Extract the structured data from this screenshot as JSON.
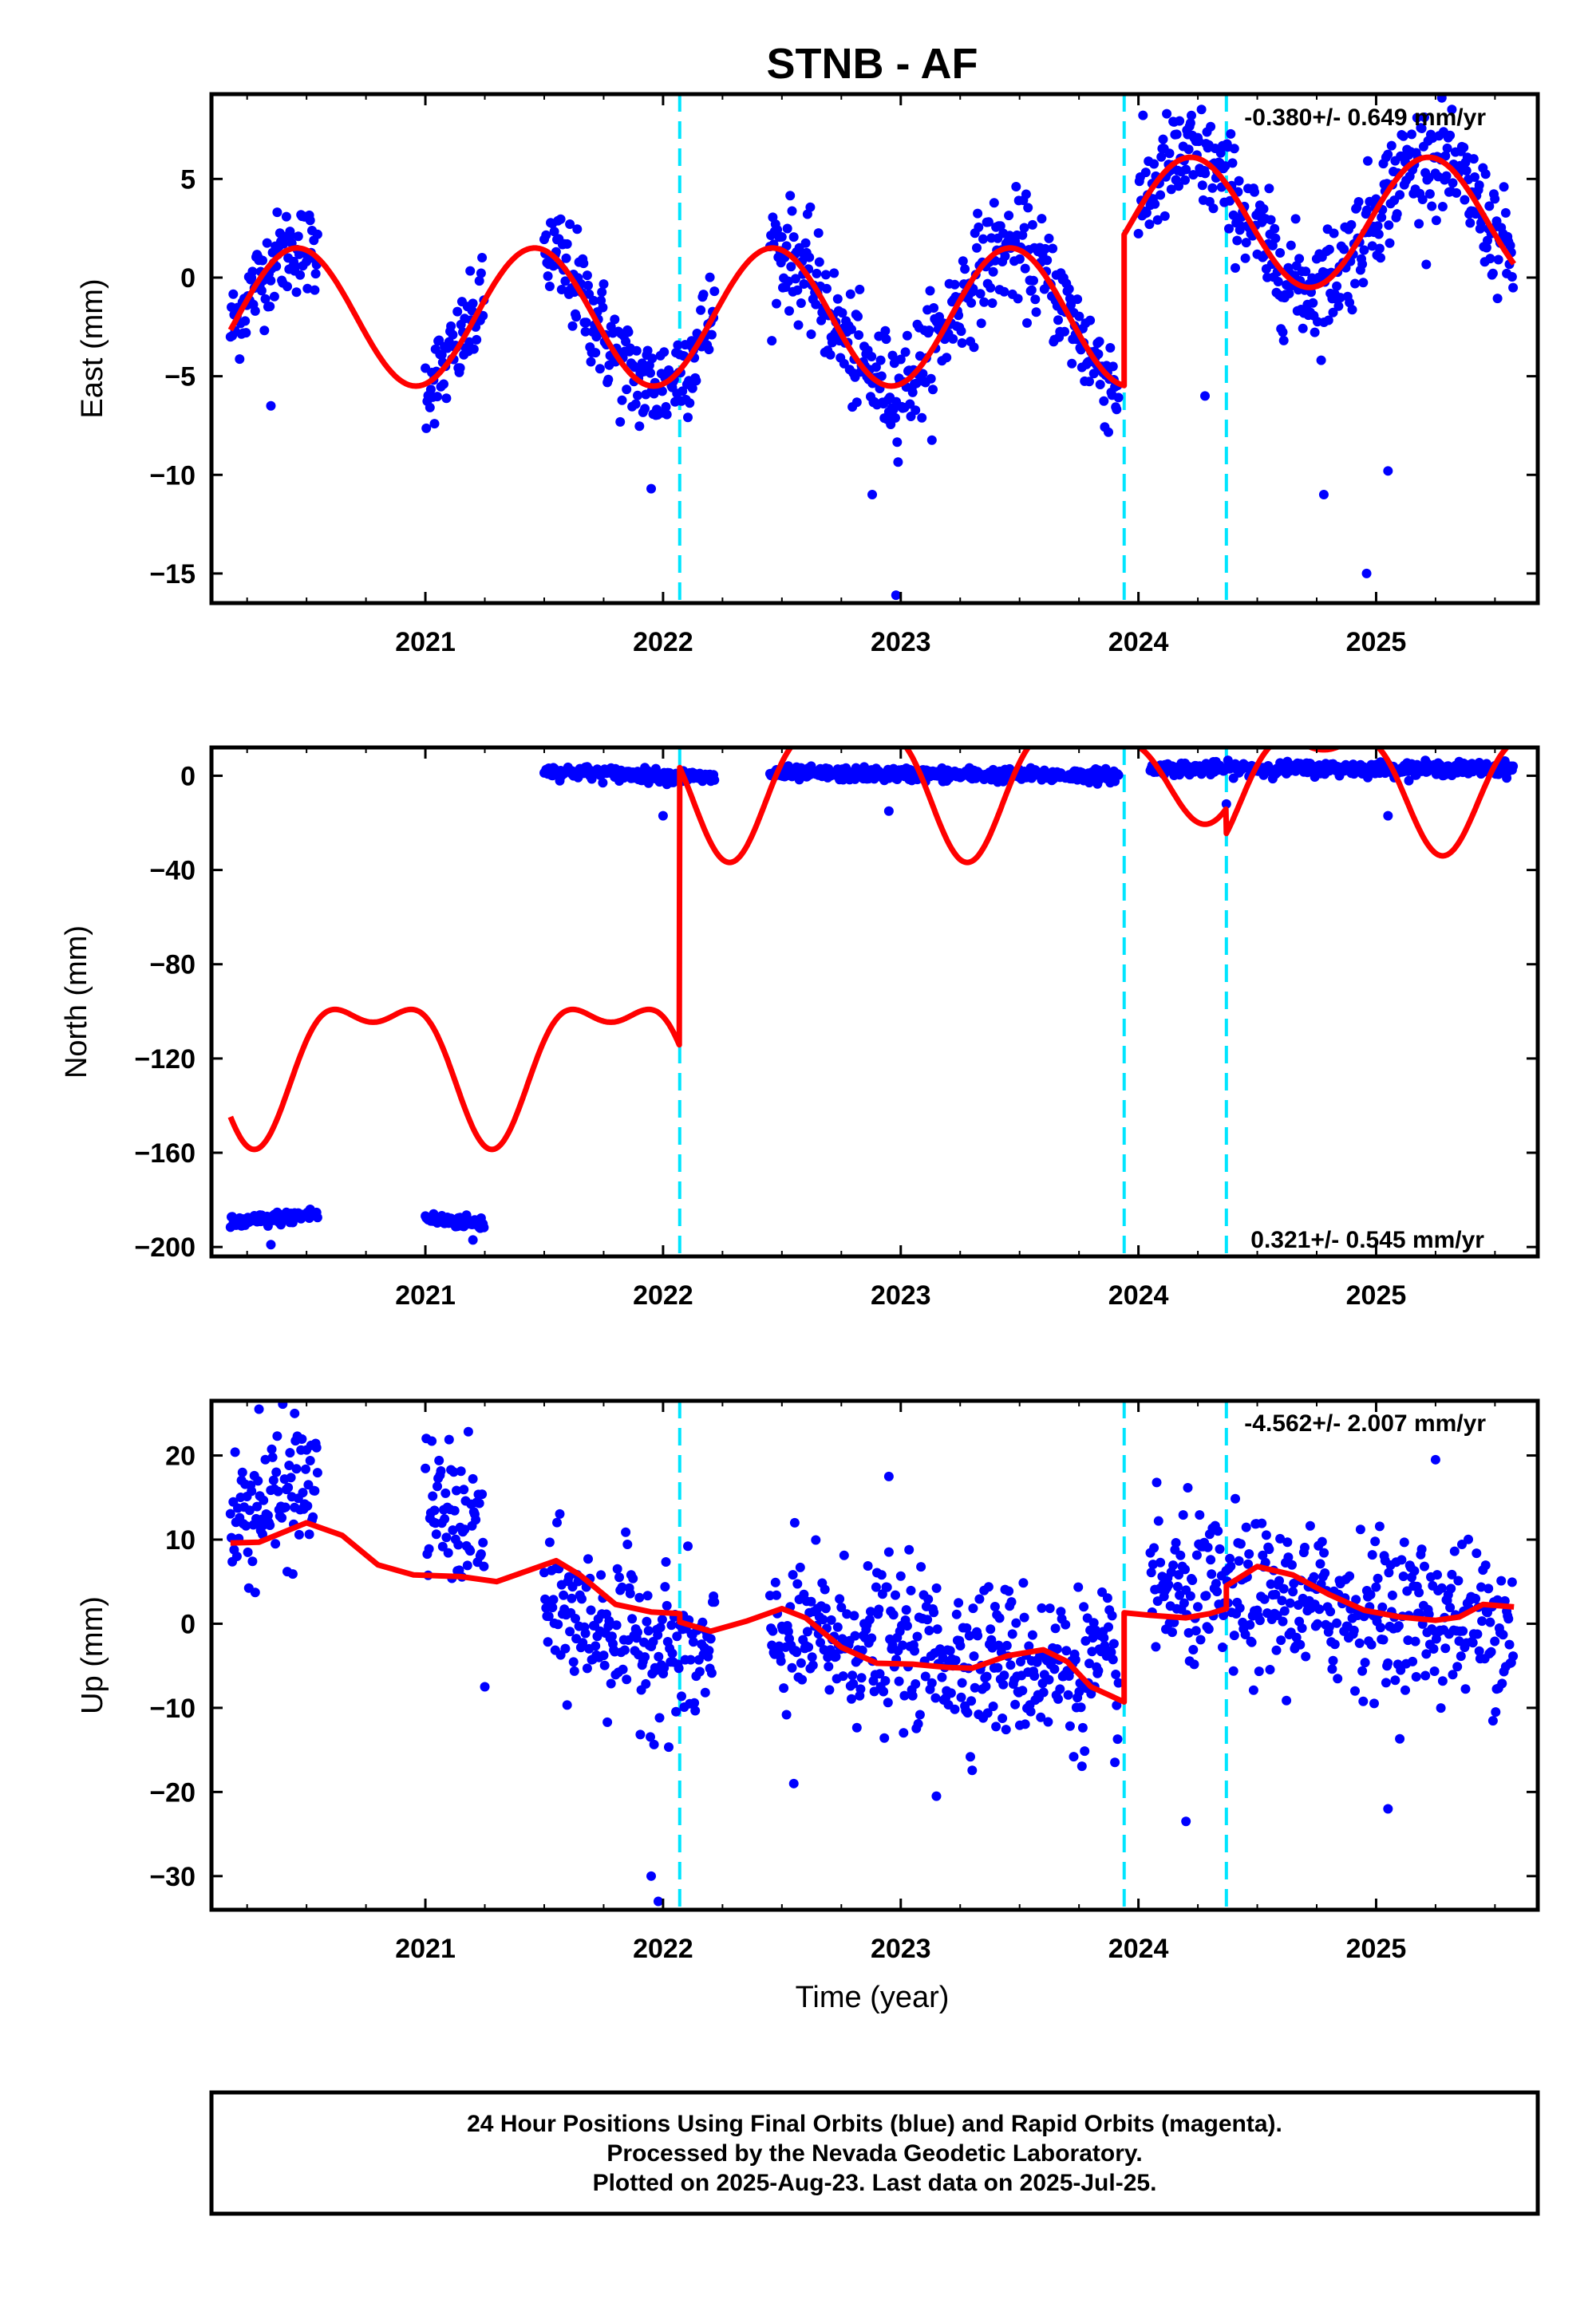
{
  "title": "STNB - AF",
  "colors": {
    "final_orbits": "#0000ff",
    "model": "#ff0000",
    "offset_marker": "#00e5ff",
    "frame": "#000000"
  },
  "caption": {
    "line1": "24 Hour Positions Using Final Orbits (blue) and Rapid Orbits (magenta).",
    "line2": "Processed by the Nevada Geodetic Laboratory.",
    "line3": "Plotted on 2025-Aug-23. Last data on 2025-Jul-25."
  },
  "chart_data": [
    {
      "type": "scatter",
      "component": "east",
      "title": "STNB - AF",
      "ylabel": "East (mm)",
      "xlabel": "",
      "xlim": [
        2020.1,
        2025.68
      ],
      "ylim": [
        -16.5,
        9.3
      ],
      "x_ticks": [
        2021,
        2022,
        2023,
        2024,
        2025
      ],
      "x_tick_labels": [
        "2021",
        "2022",
        "2023",
        "2024",
        "2025"
      ],
      "y_ticks": [
        5,
        0,
        -5,
        -10,
        -15
      ],
      "y_tick_labels": [
        "5",
        "0",
        "−5",
        "−10",
        "−15"
      ],
      "rate_text": "-0.380+/- 0.649 mm/yr",
      "rate_position": "top-right",
      "offset_epochs": [
        2022.07,
        2023.94,
        2024.37
      ],
      "data_segments": [
        {
          "x": [
            2020.18,
            2020.55
          ],
          "center": [
            1.0,
            2.5
          ],
          "spread": 2.5
        },
        {
          "x": [
            2021.0,
            2021.25
          ],
          "center": [
            -5.0,
            -2.8
          ],
          "spread": 2.5
        },
        {
          "x": [
            2021.5,
            2022.22
          ],
          "center": [
            -1.0,
            -5.5
          ],
          "spread": 3.0
        },
        {
          "x": [
            2022.45,
            2023.92
          ],
          "center": [
            -1.0,
            -2.5
          ],
          "spread": 3.0
        },
        {
          "x": [
            2024.0,
            2025.58
          ],
          "center": [
            3.0,
            4.5
          ],
          "spread": 3.0
        }
      ],
      "outliers": [
        {
          "x": 2020.35,
          "y": -6.5
        },
        {
          "x": 2021.95,
          "y": -10.7
        },
        {
          "x": 2022.88,
          "y": -11.0
        },
        {
          "x": 2022.98,
          "y": -16.1
        },
        {
          "x": 2024.28,
          "y": -6.0
        },
        {
          "x": 2024.78,
          "y": -11.0
        },
        {
          "x": 2024.96,
          "y": -15.0
        },
        {
          "x": 2025.05,
          "y": -9.8
        }
      ],
      "model": [
        {
          "x": [
            2020.18,
            2023.94
          ],
          "offset": -2.0,
          "slope": 0,
          "amplitude": 3.5,
          "phase_peak": 0.46,
          "t0": 2020.18
        },
        {
          "x": [
            2023.94,
            2025.58
          ],
          "offset": 2.8,
          "slope": 0,
          "amplitude": 3.3,
          "phase_peak": 0.46,
          "t0": 2023.94
        }
      ]
    },
    {
      "type": "scatter",
      "component": "north",
      "ylabel": "North (mm)",
      "xlabel": "",
      "xlim": [
        2020.1,
        2025.68
      ],
      "ylim": [
        -204,
        12
      ],
      "x_ticks": [
        2021,
        2022,
        2023,
        2024,
        2025
      ],
      "x_tick_labels": [
        "2021",
        "2022",
        "2023",
        "2024",
        "2025"
      ],
      "y_ticks": [
        0,
        -40,
        -80,
        -120,
        -160,
        -200
      ],
      "y_tick_labels": [
        "0",
        "−40",
        "−80",
        "−120",
        "−160",
        "−200"
      ],
      "rate_text": "0.321+/- 0.545 mm/yr",
      "rate_position": "bottom-right",
      "offset_epochs": [
        2022.07,
        2023.94,
        2024.37
      ],
      "data_segments": [
        {
          "x": [
            2020.18,
            2020.55
          ],
          "center": [
            -190,
            -186
          ],
          "spread": 3.0
        },
        {
          "x": [
            2021.0,
            2021.25
          ],
          "center": [
            -188,
            -190
          ],
          "spread": 3.0
        },
        {
          "x": [
            2021.5,
            2022.22
          ],
          "center": [
            2,
            -1
          ],
          "spread": 3.0
        },
        {
          "x": [
            2022.45,
            2023.92
          ],
          "center": [
            1,
            0
          ],
          "spread": 3.0
        },
        {
          "x": [
            2024.05,
            2025.58
          ],
          "center": [
            3,
            3
          ],
          "spread": 3.0
        }
      ],
      "outliers": [
        {
          "x": 2020.35,
          "y": -199
        },
        {
          "x": 2021.2,
          "y": -197
        },
        {
          "x": 2022.0,
          "y": -17
        },
        {
          "x": 2022.95,
          "y": -15
        },
        {
          "x": 2025.05,
          "y": -17
        },
        {
          "x": 2024.37,
          "y": -12
        }
      ],
      "model_segments": [
        {
          "x": [
            2020.18,
            2022.07
          ],
          "offset": -101,
          "amplitude": 36,
          "t0": 2020.18,
          "kind": "north1"
        },
        {
          "x": [
            2022.07,
            2023.94
          ],
          "offset": 16,
          "amplitude": 33,
          "t0": 2022.07,
          "kind": "north2"
        },
        {
          "x": [
            2023.94,
            2024.37
          ],
          "offset": 13,
          "amplitude": 21,
          "t0": 2023.94,
          "kind": "north3"
        },
        {
          "x": [
            2024.37,
            2025.58
          ],
          "offset": 14,
          "amplitude": 30,
          "t0": 2024.37,
          "kind": "north4"
        }
      ]
    },
    {
      "type": "scatter",
      "component": "up",
      "ylabel": "Up (mm)",
      "xlabel": "Time (year)",
      "xlim": [
        2020.1,
        2025.68
      ],
      "ylim": [
        -34,
        26.5
      ],
      "x_ticks": [
        2021,
        2022,
        2023,
        2024,
        2025
      ],
      "x_tick_labels": [
        "2021",
        "2022",
        "2023",
        "2024",
        "2025"
      ],
      "y_ticks": [
        20,
        10,
        0,
        -10,
        -20,
        -30
      ],
      "y_tick_labels": [
        "20",
        "10",
        "0",
        "−10",
        "−20",
        "−30"
      ],
      "rate_text": "-4.562+/- 2.007 mm/yr",
      "rate_position": "top-right",
      "offset_epochs": [
        2022.07,
        2023.94,
        2024.37
      ],
      "data_segments": [
        {
          "x": [
            2020.18,
            2020.55
          ],
          "center": [
            12,
            17
          ],
          "spread": 9
        },
        {
          "x": [
            2021.0,
            2021.25
          ],
          "center": [
            14,
            11
          ],
          "spread": 9
        },
        {
          "x": [
            2021.5,
            2022.22
          ],
          "center": [
            2,
            -5
          ],
          "spread": 10
        },
        {
          "x": [
            2022.45,
            2023.92
          ],
          "center": [
            -1,
            -6
          ],
          "spread": 10
        },
        {
          "x": [
            2024.05,
            2025.58
          ],
          "center": [
            4,
            0
          ],
          "spread": 10
        }
      ],
      "outliers": [
        {
          "x": 2021.25,
          "y": -7.5
        },
        {
          "x": 2021.95,
          "y": -30
        },
        {
          "x": 2021.98,
          "y": -33
        },
        {
          "x": 2022.55,
          "y": -19
        },
        {
          "x": 2022.95,
          "y": 17.5
        },
        {
          "x": 2023.15,
          "y": -20.5
        },
        {
          "x": 2024.2,
          "y": -23.5
        },
        {
          "x": 2025.05,
          "y": -22
        },
        {
          "x": 2025.25,
          "y": 19.5
        },
        {
          "x": 2020.3,
          "y": 25.5
        },
        {
          "x": 2020.45,
          "y": 25.0
        }
      ],
      "model_points": [
        [
          2020.18,
          9.6
        ],
        [
          2020.3,
          9.7
        ],
        [
          2020.5,
          12.0
        ],
        [
          2020.65,
          10.5
        ],
        [
          2020.8,
          7.0
        ],
        [
          2020.95,
          5.8
        ],
        [
          2021.15,
          5.6
        ],
        [
          2021.3,
          5.0
        ],
        [
          2021.45,
          6.5
        ],
        [
          2021.55,
          7.5
        ],
        [
          2021.65,
          5.8
        ],
        [
          2021.8,
          2.3
        ],
        [
          2021.95,
          1.4
        ],
        [
          2022.07,
          1.2
        ],
        [
          2022.07,
          0.2
        ],
        [
          2022.2,
          -0.9
        ],
        [
          2022.35,
          0.3
        ],
        [
          2022.5,
          1.8
        ],
        [
          2022.6,
          0.7
        ],
        [
          2022.75,
          -2.8
        ],
        [
          2022.9,
          -4.7
        ],
        [
          2023.05,
          -4.8
        ],
        [
          2023.2,
          -5.2
        ],
        [
          2023.3,
          -5.3
        ],
        [
          2023.45,
          -3.8
        ],
        [
          2023.6,
          -3.1
        ],
        [
          2023.7,
          -4.5
        ],
        [
          2023.8,
          -7.5
        ],
        [
          2023.94,
          -9.3
        ],
        [
          2023.94,
          1.3
        ],
        [
          2024.05,
          1.0
        ],
        [
          2024.2,
          0.7
        ],
        [
          2024.3,
          1.2
        ],
        [
          2024.37,
          1.8
        ],
        [
          2024.37,
          4.5
        ],
        [
          2024.5,
          6.8
        ],
        [
          2024.65,
          5.8
        ],
        [
          2024.8,
          3.5
        ],
        [
          2024.95,
          1.6
        ],
        [
          2025.1,
          0.8
        ],
        [
          2025.25,
          0.4
        ],
        [
          2025.35,
          0.8
        ],
        [
          2025.45,
          2.3
        ],
        [
          2025.58,
          2.0
        ]
      ]
    }
  ]
}
